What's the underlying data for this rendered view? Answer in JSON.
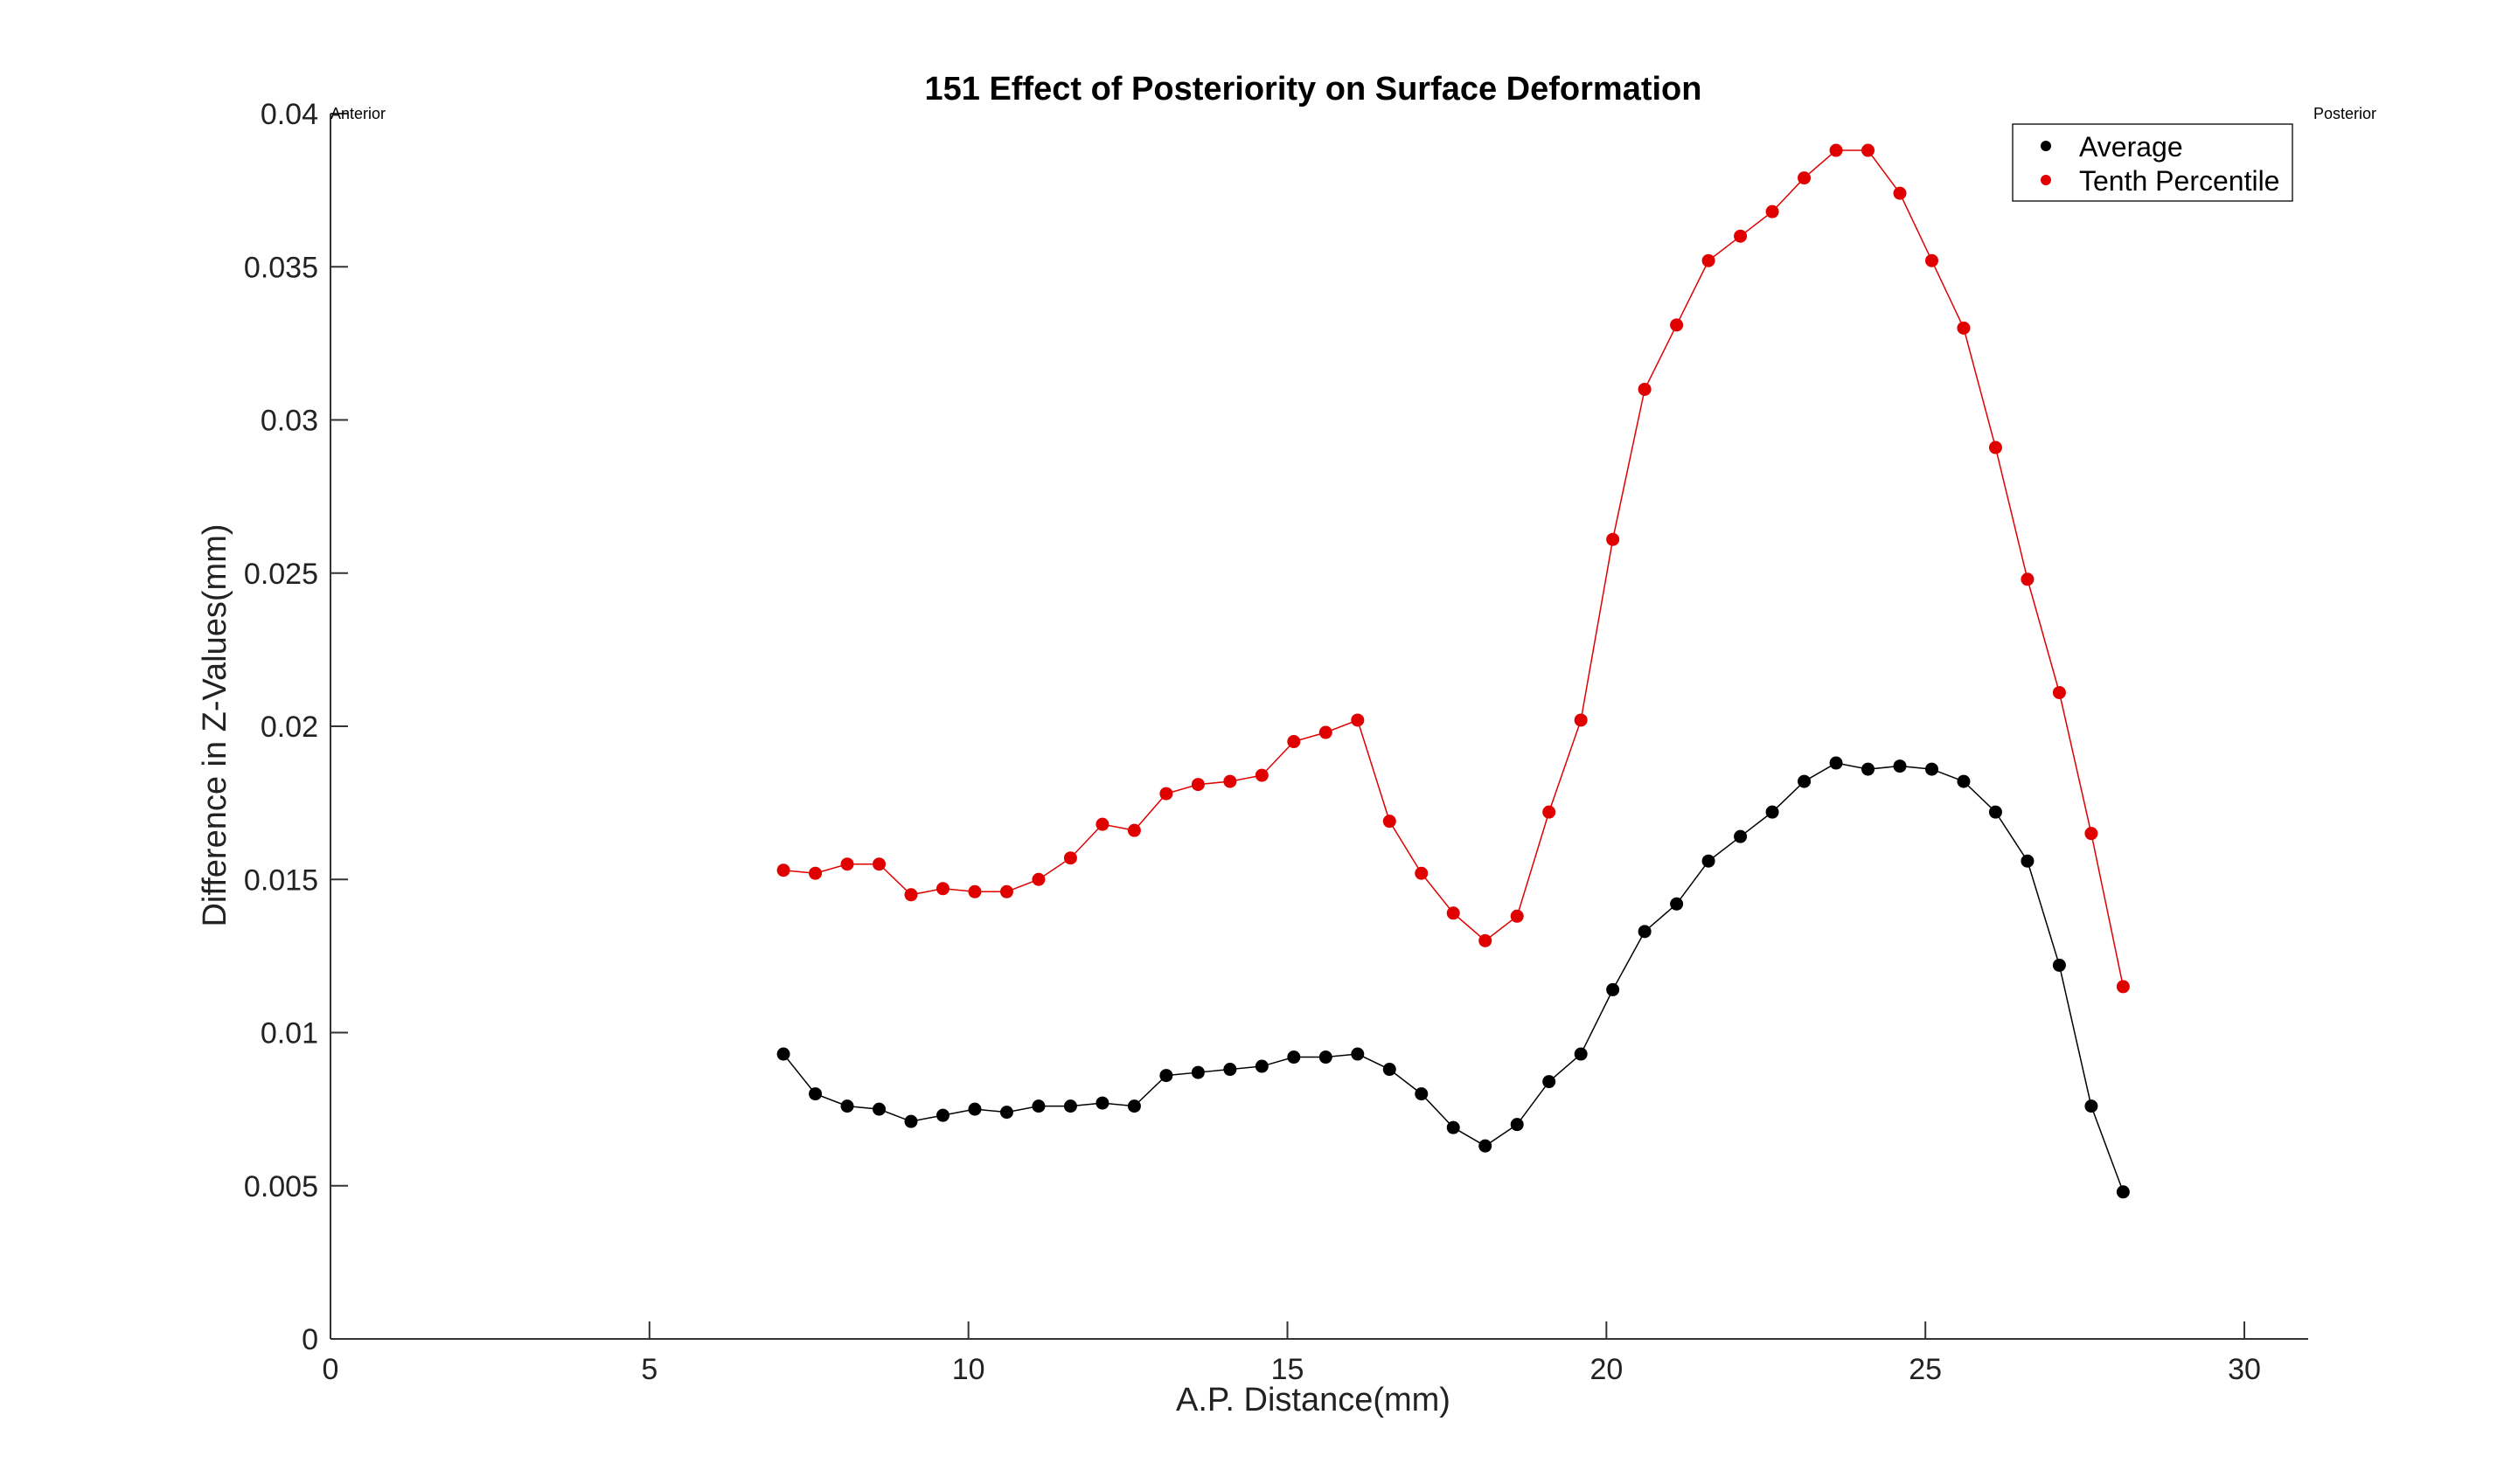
{
  "chart_data": {
    "type": "line",
    "title": "151  Effect of Posteriority on Surface Deformation",
    "xlabel": "A.P. Distance(mm)",
    "ylabel": "Difference in Z-Values(mm)",
    "xlim": [
      0,
      31
    ],
    "ylim": [
      0,
      0.04
    ],
    "xticks": [
      0,
      5,
      10,
      15,
      20,
      25,
      30
    ],
    "yticks": [
      0,
      0.005,
      0.01,
      0.015,
      0.02,
      0.025,
      0.03,
      0.035,
      0.04
    ],
    "ytick_labels": [
      "0",
      "0.005",
      "0.01",
      "0.015",
      "0.02",
      "0.025",
      "0.03",
      "0.035",
      "0.04"
    ],
    "grid": false,
    "legend_position": "top-right",
    "annotations": {
      "left": "Anterior",
      "right": "Posterior"
    },
    "x": [
      7.1,
      7.6,
      8.1,
      8.6,
      9.1,
      9.6,
      10.1,
      10.6,
      11.1,
      11.6,
      12.1,
      12.6,
      13.1,
      13.6,
      14.1,
      14.6,
      15.1,
      15.6,
      16.1,
      16.6,
      17.1,
      17.6,
      18.1,
      18.6,
      19.1,
      19.6,
      20.1,
      20.6,
      21.1,
      21.6,
      22.1,
      22.6,
      23.1,
      23.6,
      24.1,
      24.6,
      25.1,
      25.6,
      26.1,
      26.6,
      27.1,
      27.6,
      28.1
    ],
    "series": [
      {
        "name": "Average",
        "color": "#000000",
        "values": [
          0.0093,
          0.008,
          0.0076,
          0.0075,
          0.0071,
          0.0073,
          0.0075,
          0.0074,
          0.0076,
          0.0076,
          0.0077,
          0.0076,
          0.0086,
          0.0087,
          0.0088,
          0.0089,
          0.0092,
          0.0092,
          0.0093,
          0.0088,
          0.008,
          0.0069,
          0.0063,
          0.007,
          0.0084,
          0.0093,
          0.0114,
          0.0133,
          0.0142,
          0.0156,
          0.0164,
          0.0172,
          0.0182,
          0.0188,
          0.0186,
          0.0187,
          0.0186,
          0.0182,
          0.0172,
          0.0156,
          0.0122,
          0.0076,
          0.0048
        ]
      },
      {
        "name": "Tenth Percentile",
        "color": "#e00000",
        "values": [
          0.0153,
          0.0152,
          0.0155,
          0.0155,
          0.0145,
          0.0147,
          0.0146,
          0.0146,
          0.015,
          0.0157,
          0.0168,
          0.0166,
          0.0178,
          0.0181,
          0.0182,
          0.0184,
          0.0195,
          0.0198,
          0.0202,
          0.0169,
          0.0152,
          0.0139,
          0.013,
          0.0138,
          0.0172,
          0.0202,
          0.0261,
          0.031,
          0.0331,
          0.0352,
          0.036,
          0.0368,
          0.0379,
          0.0388,
          0.0388,
          0.0374,
          0.0352,
          0.033,
          0.0291,
          0.0248,
          0.0211,
          0.0165,
          0.0115
        ]
      }
    ]
  }
}
